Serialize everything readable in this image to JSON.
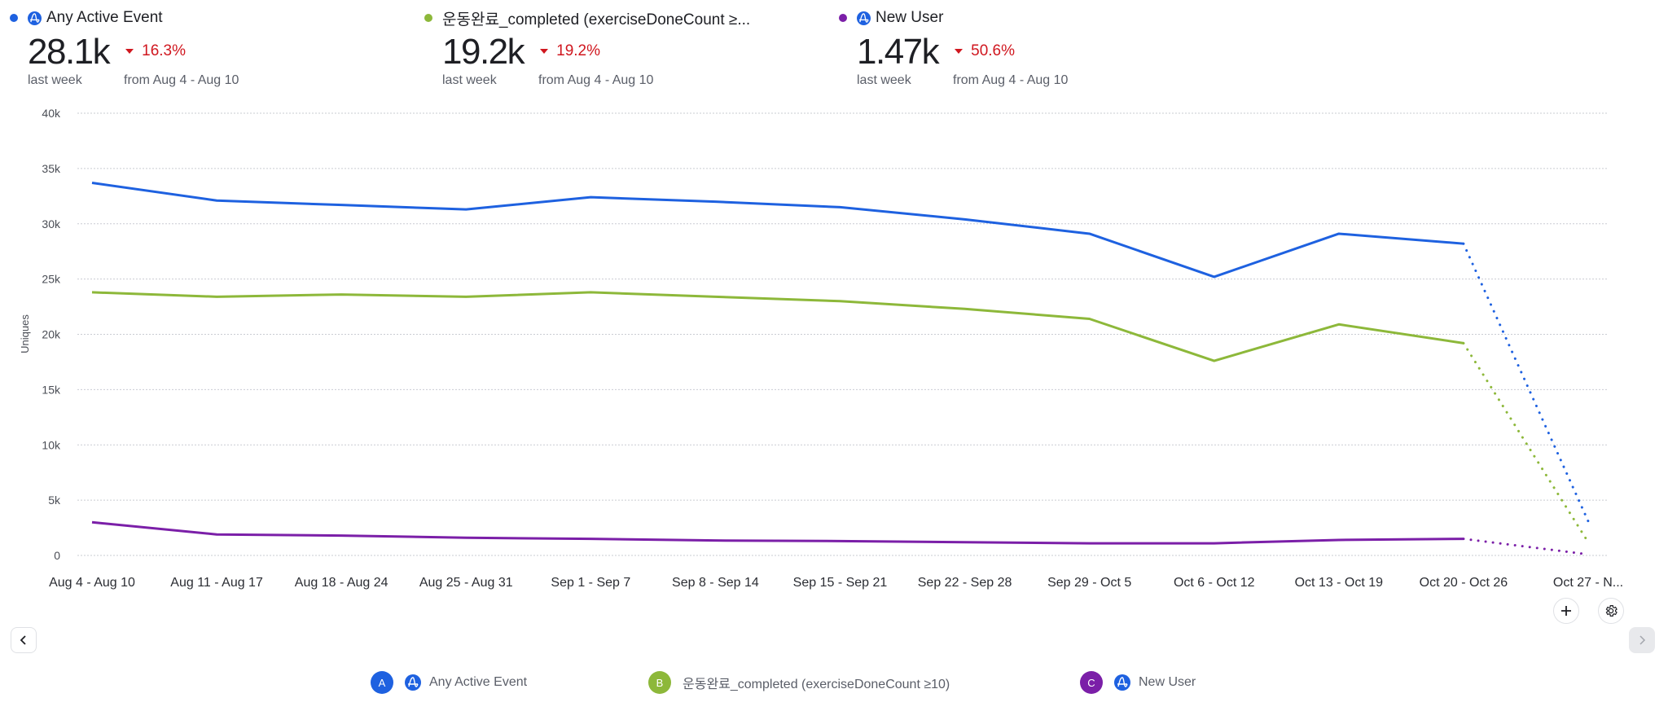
{
  "colors": {
    "series_a": "#1e61e0",
    "series_b": "#8db83a",
    "series_c": "#7b1fa8",
    "decrease": "#d0171f",
    "amp_icon": "#1e61e0"
  },
  "kpis": [
    {
      "label": "Any Active Event",
      "has_amp_icon": true,
      "value": "28.1k",
      "change": "16.3%",
      "direction": "down",
      "period": "last week",
      "compare": "from Aug 4 - Aug 10"
    },
    {
      "label": "운동완료_completed (exerciseDoneCount ≥...",
      "has_amp_icon": false,
      "value": "19.2k",
      "change": "19.2%",
      "direction": "down",
      "period": "last week",
      "compare": "from Aug 4 - Aug 10"
    },
    {
      "label": "New User",
      "has_amp_icon": true,
      "value": "1.47k",
      "change": "50.6%",
      "direction": "down",
      "period": "last week",
      "compare": "from Aug 4 - Aug 10"
    }
  ],
  "chart_data": {
    "type": "line",
    "title": "",
    "xlabel": "",
    "ylabel": "Uniques",
    "ylim": [
      0,
      40000
    ],
    "yticks": [
      0,
      5000,
      10000,
      15000,
      20000,
      25000,
      30000,
      35000,
      40000
    ],
    "ytick_labels": [
      "0",
      "5k",
      "10k",
      "15k",
      "20k",
      "25k",
      "30k",
      "35k",
      "40k"
    ],
    "grid": true,
    "categories": [
      "Aug 4 - Aug 10",
      "Aug 11 - Aug 17",
      "Aug 18 - Aug 24",
      "Aug 25 - Aug 31",
      "Sep 1 - Sep 7",
      "Sep 8 - Sep 14",
      "Sep 15 - Sep 21",
      "Sep 22 - Sep 28",
      "Sep 29 - Oct 5",
      "Oct 6 - Oct 12",
      "Oct 13 - Oct 19",
      "Oct 20 - Oct 26",
      "Oct 27 - N..."
    ],
    "incomplete_from_index": 11,
    "series": [
      {
        "name": "Any Active Event",
        "key": "A",
        "values": [
          33700,
          32100,
          31700,
          31300,
          32400,
          32000,
          31500,
          30400,
          29100,
          25200,
          29100,
          28200,
          3100
        ]
      },
      {
        "name": "운동완료_completed (exerciseDoneCount ≥10)",
        "key": "B",
        "values": [
          23800,
          23400,
          23600,
          23400,
          23800,
          23400,
          23000,
          22300,
          21400,
          17600,
          20900,
          19200,
          1200
        ]
      },
      {
        "name": "New User",
        "key": "C",
        "values": [
          3000,
          1900,
          1800,
          1600,
          1500,
          1350,
          1300,
          1200,
          1100,
          1100,
          1400,
          1500,
          100
        ]
      }
    ]
  },
  "legend": [
    {
      "badge": "A",
      "has_amp_icon": true,
      "label": "Any Active Event"
    },
    {
      "badge": "B",
      "has_amp_icon": false,
      "label": "운동완료_completed (exerciseDoneCount ≥10)"
    },
    {
      "badge": "C",
      "has_amp_icon": true,
      "label": "New User"
    }
  ],
  "controls": {
    "add_icon": "plus-icon",
    "settings_icon": "gear-icon",
    "prev_icon": "chevron-left-icon",
    "next_icon": "chevron-right-icon"
  }
}
